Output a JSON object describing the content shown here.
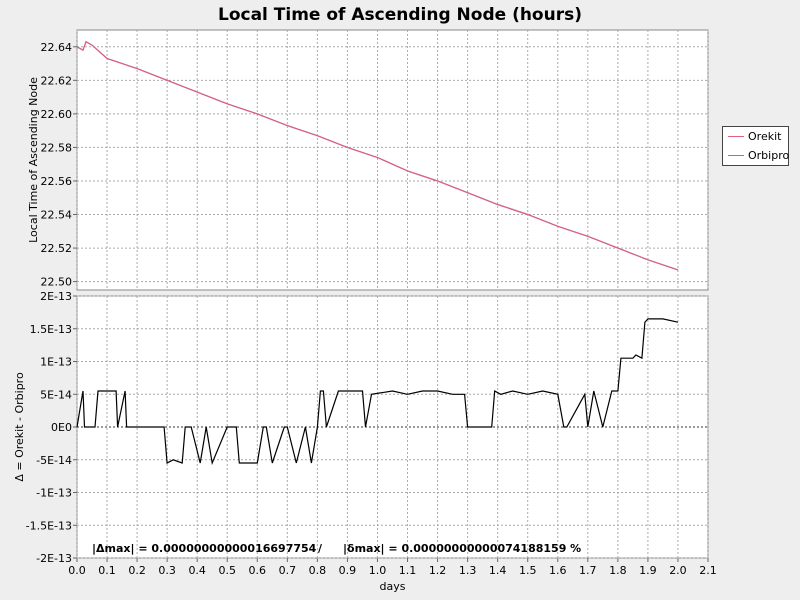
{
  "chart_data": [
    {
      "type": "line",
      "title": "Local Time of Ascending Node (hours)",
      "ylabel": "Local Time of Ascending Node",
      "xlim": [
        0.0,
        2.1
      ],
      "ylim": [
        22.495,
        22.65
      ],
      "yticks": [
        22.5,
        22.52,
        22.54,
        22.56,
        22.58,
        22.6,
        22.62,
        22.64
      ],
      "ytick_labels": [
        "22.50",
        "22.52",
        "22.54",
        "22.56",
        "22.58",
        "22.60",
        "22.62",
        "22.64"
      ],
      "grid": true,
      "legend_position": "right",
      "series": [
        {
          "name": "Orekit",
          "color": "#e0607e",
          "x": [
            0.0,
            0.02,
            0.03,
            0.05,
            0.1,
            0.2,
            0.3,
            0.4,
            0.5,
            0.6,
            0.7,
            0.8,
            0.9,
            1.0,
            1.1,
            1.2,
            1.3,
            1.4,
            1.5,
            1.6,
            1.7,
            1.8,
            1.9,
            2.0
          ],
          "y": [
            22.64,
            22.638,
            22.643,
            22.641,
            22.633,
            22.627,
            22.62,
            22.613,
            22.606,
            22.6,
            22.593,
            22.587,
            22.58,
            22.574,
            22.566,
            22.56,
            22.553,
            22.546,
            22.54,
            22.533,
            22.527,
            22.52,
            22.513,
            22.507
          ]
        },
        {
          "name": "Orbipro",
          "color": "#7777dd",
          "x": [
            0.0,
            0.02,
            0.03,
            0.05,
            0.1,
            0.2,
            0.3,
            0.4,
            0.5,
            0.6,
            0.7,
            0.8,
            0.9,
            1.0,
            1.1,
            1.2,
            1.3,
            1.4,
            1.5,
            1.6,
            1.7,
            1.8,
            1.9,
            2.0
          ],
          "y": [
            22.64,
            22.638,
            22.643,
            22.641,
            22.633,
            22.627,
            22.62,
            22.613,
            22.606,
            22.6,
            22.593,
            22.587,
            22.58,
            22.574,
            22.566,
            22.56,
            22.553,
            22.546,
            22.54,
            22.533,
            22.527,
            22.52,
            22.513,
            22.507
          ]
        }
      ]
    },
    {
      "type": "line",
      "xlabel": "days",
      "ylabel": "Δ = Orekit - Orbipro",
      "xlim": [
        0.0,
        2.1
      ],
      "ylim": [
        -2e-13,
        2e-13
      ],
      "xticks": [
        0.0,
        0.1,
        0.2,
        0.3,
        0.4,
        0.5,
        0.6,
        0.7,
        0.8,
        0.9,
        1.0,
        1.1,
        1.2,
        1.3,
        1.4,
        1.5,
        1.6,
        1.7,
        1.8,
        1.9,
        2.0,
        2.1
      ],
      "xtick_labels": [
        "0.0",
        "0.1",
        "0.2",
        "0.3",
        "0.4",
        "0.5",
        "0.6",
        "0.7",
        "0.8",
        "0.9",
        "1.0",
        "1.1",
        "1.2",
        "1.3",
        "1.4",
        "1.5",
        "1.6",
        "1.7",
        "1.8",
        "1.9",
        "2.0",
        "2.1"
      ],
      "yticks": [
        2e-13,
        1.5e-13,
        1e-13,
        5e-14,
        0,
        -5e-14,
        -1e-13,
        -1.5e-13,
        -2e-13
      ],
      "ytick_labels": [
        "2E-13",
        "1.5E-13",
        "1E-13",
        "5E-14",
        "0E0",
        "-5E-14",
        "-1E-13",
        "-1.5E-13",
        "-2E-13"
      ],
      "grid": true,
      "series": [
        {
          "color": "#000000",
          "x": [
            0.0,
            0.02,
            0.025,
            0.03,
            0.06,
            0.07,
            0.1,
            0.13,
            0.135,
            0.16,
            0.165,
            0.2,
            0.22,
            0.24,
            0.25,
            0.29,
            0.3,
            0.32,
            0.35,
            0.36,
            0.38,
            0.41,
            0.43,
            0.45,
            0.5,
            0.51,
            0.53,
            0.54,
            0.55,
            0.58,
            0.6,
            0.62,
            0.63,
            0.65,
            0.69,
            0.7,
            0.73,
            0.76,
            0.78,
            0.8,
            0.81,
            0.82,
            0.83,
            0.87,
            0.88,
            0.89,
            0.95,
            0.96,
            0.98,
            1.05,
            1.1,
            1.15,
            1.2,
            1.25,
            1.29,
            1.3,
            1.38,
            1.39,
            1.41,
            1.45,
            1.5,
            1.55,
            1.6,
            1.62,
            1.63,
            1.69,
            1.7,
            1.72,
            1.75,
            1.78,
            1.8,
            1.81,
            1.85,
            1.86,
            1.88,
            1.89,
            1.9,
            1.95,
            2.0
          ],
          "y": [
            0,
            5.5e-14,
            0,
            0,
            0,
            5.5e-14,
            5.5e-14,
            5.5e-14,
            0,
            5.5e-14,
            0,
            0,
            0,
            0,
            0,
            0,
            -5.5e-14,
            -5e-14,
            -5.5e-14,
            0,
            0,
            -5.5e-14,
            0,
            -5.5e-14,
            0,
            0,
            0,
            -5.5e-14,
            -5.5e-14,
            -5.5e-14,
            -5.5e-14,
            0,
            0,
            -5.5e-14,
            0,
            0,
            -5.5e-14,
            0,
            -5.5e-14,
            0,
            5.5e-14,
            5.5e-14,
            0,
            5.5e-14,
            5.5e-14,
            5.5e-14,
            5.5e-14,
            0,
            5e-14,
            5.5e-14,
            5e-14,
            5.5e-14,
            5.5e-14,
            5e-14,
            5e-14,
            0,
            0,
            5.5e-14,
            5e-14,
            5.5e-14,
            5e-14,
            5.5e-14,
            5e-14,
            0,
            0,
            5e-14,
            0,
            5.5e-14,
            0,
            5.5e-14,
            5.5e-14,
            1.05e-13,
            1.05e-13,
            1.1e-13,
            1.05e-13,
            1.6e-13,
            1.65e-13,
            1.65e-13,
            1.6e-13
          ]
        }
      ]
    }
  ],
  "footer": {
    "delta_max": "|Δmax| = 0.00000000000016697754",
    "separator": "/",
    "delta_rel": "|δmax| = 0.00000000000074188159 %"
  }
}
